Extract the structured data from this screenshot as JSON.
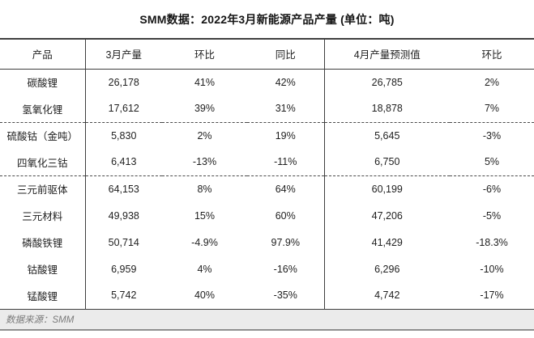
{
  "chart_data": {
    "type": "table",
    "title": "SMM数据：2022年3月新能源产品产量 (单位：吨)",
    "columns": [
      "产品",
      "3月产量",
      "环比",
      "同比",
      "4月产量预测值",
      "环比"
    ],
    "rows": [
      [
        "碳酸锂",
        "26,178",
        "41%",
        "42%",
        "26,785",
        "2%"
      ],
      [
        "氢氧化锂",
        "17,612",
        "39%",
        "31%",
        "18,878",
        "7%"
      ],
      [
        "硫酸钴（金吨）",
        "5,830",
        "2%",
        "19%",
        "5,645",
        "-3%"
      ],
      [
        "四氧化三钴",
        "6,413",
        "-13%",
        "-11%",
        "6,750",
        "5%"
      ],
      [
        "三元前驱体",
        "64,153",
        "8%",
        "64%",
        "60,199",
        "-6%"
      ],
      [
        "三元材料",
        "49,938",
        "15%",
        "60%",
        "47,206",
        "-5%"
      ],
      [
        "磷酸铁锂",
        "50,714",
        "-4.9%",
        "97.9%",
        "41,429",
        "-18.3%"
      ],
      [
        "钴酸锂",
        "6,959",
        "4%",
        "-16%",
        "6,296",
        "-10%"
      ],
      [
        "锰酸锂",
        "5,742",
        "40%",
        "-35%",
        "4,742",
        "-17%"
      ]
    ],
    "group_separators_after_rows": [
      2,
      4
    ],
    "source_note": "数据来源：SMM",
    "layout": {
      "title_color": "#141414",
      "border_color": "#3f3f3f",
      "footer_bg": "#ebebeb",
      "footer_text_color": "#7a7a7a"
    }
  }
}
